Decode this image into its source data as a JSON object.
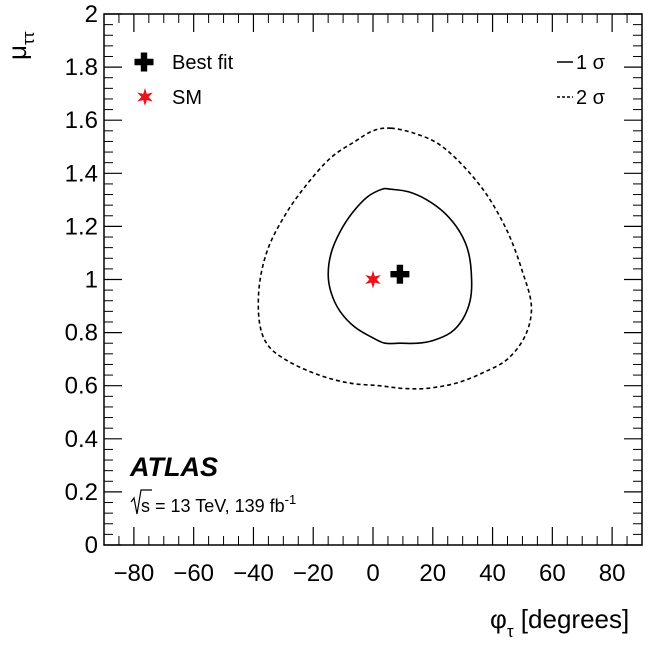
{
  "chart_data": {
    "type": "scatter",
    "title": "",
    "xlabel": {
      "symbol": "φ",
      "sub": "τ",
      "rest": " [degrees]"
    },
    "ylabel": {
      "symbol": "μ",
      "sub": "ττ"
    },
    "xlim": [
      -90,
      90
    ],
    "ylim": [
      0,
      2
    ],
    "xticks": [
      -80,
      -60,
      -40,
      -20,
      0,
      20,
      40,
      60,
      80
    ],
    "xtick_labels": [
      "−80",
      "−60",
      "−40",
      "−20",
      "0",
      "20",
      "40",
      "60",
      "80"
    ],
    "yticks": [
      0,
      0.2,
      0.4,
      0.6,
      0.8,
      1,
      1.2,
      1.4,
      1.6,
      1.8,
      2
    ],
    "ytick_labels": [
      "0",
      "0.2",
      "0.4",
      "0.6",
      "0.8",
      "1",
      "1.2",
      "1.4",
      "1.6",
      "1.8",
      "2"
    ],
    "grid": false,
    "best_fit": {
      "name": "Best fit",
      "x": 9,
      "y": 1.02,
      "color": "#000000"
    },
    "sm": {
      "name": "SM",
      "x": 0,
      "y": 1.0,
      "color": "#e8141c"
    },
    "contours": [
      {
        "name": "1 σ",
        "style": "solid",
        "points": [
          [
            6,
            1.34
          ],
          [
            12,
            1.33
          ],
          [
            18,
            1.3
          ],
          [
            24,
            1.25
          ],
          [
            29,
            1.18
          ],
          [
            32,
            1.1
          ],
          [
            33,
            1.0
          ],
          [
            32.5,
            0.92
          ],
          [
            30,
            0.85
          ],
          [
            26,
            0.8
          ],
          [
            20,
            0.77
          ],
          [
            15,
            0.76
          ],
          [
            9,
            0.76
          ],
          [
            4,
            0.76
          ],
          [
            0,
            0.78
          ],
          [
            -6,
            0.82
          ],
          [
            -11,
            0.88
          ],
          [
            -14,
            0.95
          ],
          [
            -15,
            1.02
          ],
          [
            -14,
            1.1
          ],
          [
            -11,
            1.18
          ],
          [
            -7,
            1.25
          ],
          [
            -2,
            1.31
          ],
          [
            3,
            1.34
          ]
        ]
      },
      {
        "name": "2 σ",
        "style": "dashed",
        "points": [
          [
            6,
            1.57
          ],
          [
            14,
            1.55
          ],
          [
            22,
            1.51
          ],
          [
            30,
            1.43
          ],
          [
            38,
            1.32
          ],
          [
            45,
            1.18
          ],
          [
            50,
            1.03
          ],
          [
            53,
            0.9
          ],
          [
            51,
            0.79
          ],
          [
            45,
            0.7
          ],
          [
            37,
            0.65
          ],
          [
            28,
            0.61
          ],
          [
            18,
            0.59
          ],
          [
            10,
            0.59
          ],
          [
            2,
            0.6
          ],
          [
            -8,
            0.61
          ],
          [
            -18,
            0.64
          ],
          [
            -28,
            0.69
          ],
          [
            -35,
            0.75
          ],
          [
            -38,
            0.84
          ],
          [
            -38,
            0.98
          ],
          [
            -35,
            1.12
          ],
          [
            -29,
            1.25
          ],
          [
            -22,
            1.36
          ],
          [
            -14,
            1.46
          ],
          [
            -6,
            1.52
          ],
          [
            0,
            1.56
          ]
        ]
      }
    ],
    "legend_left": [
      {
        "marker": "cross",
        "label": "Best fit"
      },
      {
        "marker": "star",
        "label": "SM"
      }
    ],
    "legend_right": [
      {
        "line": "solid",
        "label": "1 σ"
      },
      {
        "line": "dashed",
        "label": "2 σ"
      }
    ],
    "legend_placement": "top",
    "annotation": {
      "experiment": "ATLAS",
      "energy": "s = 13 TeV, 139 fb",
      "lumi_sup": "-1"
    }
  }
}
